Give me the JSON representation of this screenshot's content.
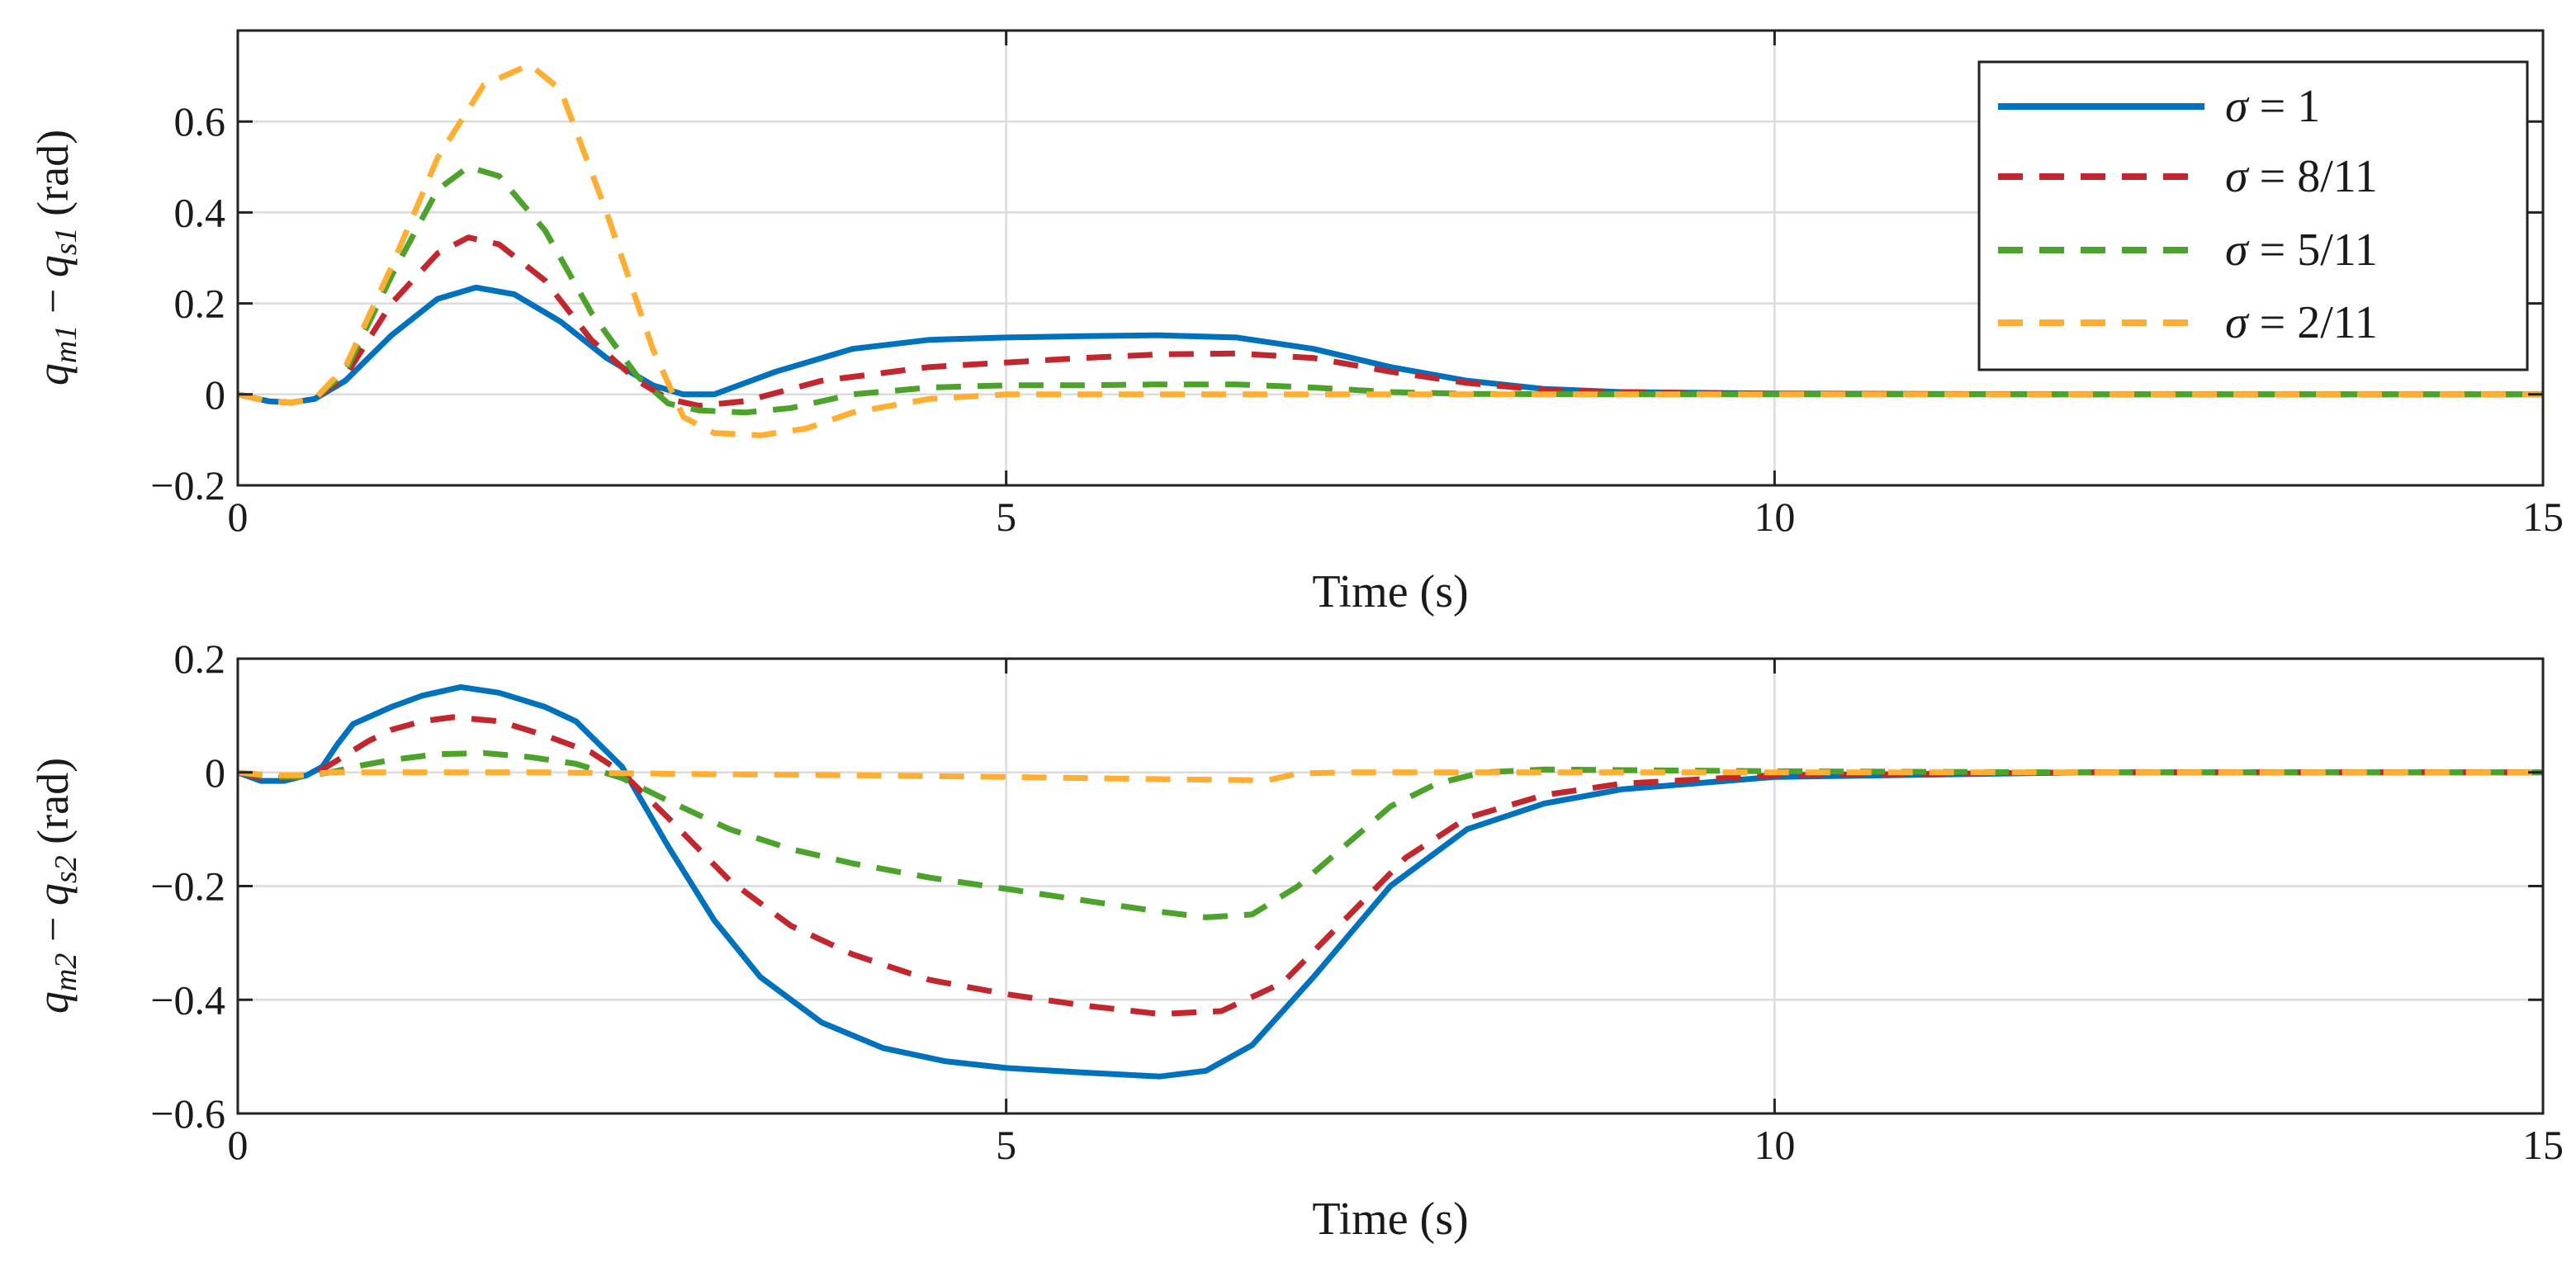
{
  "chart_data": [
    {
      "type": "line",
      "ylabel": {
        "base1": "q",
        "sub1": "m1",
        "minus": " − ",
        "base2": "q",
        "sub2": "s1",
        "unit": " (rad)"
      },
      "xlabel": "Time (s)",
      "xlim": [
        0,
        15
      ],
      "ylim": [
        -0.2,
        0.8
      ],
      "xticks": [
        0,
        5,
        10,
        15
      ],
      "xtick_labels": [
        "0",
        "5",
        "10",
        "15"
      ],
      "yticks": [
        -0.2,
        0,
        0.2,
        0.4,
        0.6
      ],
      "ytick_labels": [
        "−0.2",
        "0",
        "0.2",
        "0.4",
        "0.6"
      ],
      "grid": true,
      "legend": {
        "position": "top-right",
        "entries": [
          {
            "sym": "σ",
            "rest": " = 1"
          },
          {
            "sym": "σ",
            "rest": " = 8/11"
          },
          {
            "sym": "σ",
            "rest": " = 5/11"
          },
          {
            "sym": "σ",
            "rest": " = 2/11"
          }
        ]
      },
      "series": [
        {
          "name": "σ = 1",
          "color": "#0072BD",
          "style": "solid",
          "x": [
            0,
            0.2,
            0.35,
            0.5,
            0.7,
            1.0,
            1.3,
            1.55,
            1.8,
            2.1,
            2.4,
            2.7,
            2.9,
            3.1,
            3.5,
            4.0,
            4.5,
            5.0,
            5.5,
            6.0,
            6.5,
            7.0,
            7.5,
            8.0,
            8.5,
            9.0,
            10,
            12,
            15
          ],
          "y": [
            0,
            -0.015,
            -0.018,
            -0.01,
            0.03,
            0.13,
            0.21,
            0.235,
            0.22,
            0.16,
            0.08,
            0.02,
            0.0,
            0.0,
            0.05,
            0.1,
            0.12,
            0.125,
            0.128,
            0.13,
            0.125,
            0.1,
            0.06,
            0.03,
            0.012,
            0.005,
            0.002,
            0,
            0
          ]
        },
        {
          "name": "σ = 8/11",
          "color": "#C1272D",
          "style": "dashed",
          "x": [
            0,
            0.2,
            0.35,
            0.5,
            0.7,
            1.0,
            1.3,
            1.5,
            1.7,
            2.0,
            2.3,
            2.6,
            2.8,
            3.0,
            3.3,
            3.8,
            4.5,
            5.0,
            5.5,
            6.0,
            6.5,
            7.0,
            7.5,
            8.0,
            8.5,
            9.0,
            10,
            12,
            15
          ],
          "y": [
            0,
            -0.015,
            -0.018,
            -0.01,
            0.04,
            0.2,
            0.31,
            0.345,
            0.33,
            0.25,
            0.12,
            0.03,
            -0.01,
            -0.025,
            -0.015,
            0.03,
            0.06,
            0.07,
            0.08,
            0.088,
            0.09,
            0.08,
            0.05,
            0.025,
            0.01,
            0.005,
            0.001,
            0,
            0
          ]
        },
        {
          "name": "σ = 5/11",
          "color": "#4CA22A",
          "style": "dashed",
          "x": [
            0,
            0.2,
            0.35,
            0.5,
            0.7,
            1.0,
            1.3,
            1.5,
            1.7,
            2.0,
            2.3,
            2.6,
            2.8,
            3.0,
            3.3,
            3.6,
            4.0,
            4.5,
            5.0,
            5.5,
            6.0,
            6.5,
            7.0,
            7.5,
            8.0,
            9.0,
            10,
            15
          ],
          "y": [
            0,
            -0.015,
            -0.018,
            -0.01,
            0.05,
            0.26,
            0.45,
            0.5,
            0.48,
            0.36,
            0.18,
            0.04,
            -0.02,
            -0.035,
            -0.04,
            -0.03,
            0.0,
            0.015,
            0.02,
            0.02,
            0.022,
            0.022,
            0.015,
            0.005,
            0.001,
            0,
            0,
            0
          ]
        },
        {
          "name": "σ = 2/11",
          "color": "#FDAE33",
          "style": "dashed",
          "x": [
            0,
            0.2,
            0.35,
            0.5,
            0.7,
            1.0,
            1.3,
            1.6,
            1.9,
            2.1,
            2.4,
            2.7,
            2.9,
            3.1,
            3.4,
            3.7,
            4.0,
            4.5,
            5.0,
            6.0,
            7.0,
            8.0,
            10,
            15
          ],
          "y": [
            0,
            -0.015,
            -0.018,
            -0.01,
            0.06,
            0.28,
            0.52,
            0.68,
            0.725,
            0.67,
            0.4,
            0.1,
            -0.05,
            -0.085,
            -0.09,
            -0.075,
            -0.04,
            -0.01,
            0.0,
            0.0,
            0.0,
            0.0,
            0.0,
            0
          ]
        }
      ]
    },
    {
      "type": "line",
      "ylabel": {
        "base1": "q",
        "sub1": "m2",
        "minus": " − ",
        "base2": "q",
        "sub2": "s2",
        "unit": " (rad)"
      },
      "xlabel": "Time (s)",
      "xlim": [
        0,
        15
      ],
      "ylim": [
        -0.6,
        0.2
      ],
      "xticks": [
        0,
        5,
        10,
        15
      ],
      "xtick_labels": [
        "0",
        "5",
        "10",
        "15"
      ],
      "yticks": [
        -0.6,
        -0.4,
        -0.2,
        0,
        0.2
      ],
      "ytick_labels": [
        "−0.6",
        "−0.4",
        "−0.2",
        "0",
        "0.2"
      ],
      "grid": true,
      "series": [
        {
          "name": "σ = 1",
          "color": "#0072BD",
          "style": "solid",
          "x": [
            0,
            0.15,
            0.3,
            0.45,
            0.55,
            0.65,
            0.75,
            1.0,
            1.2,
            1.45,
            1.7,
            2.0,
            2.2,
            2.5,
            2.8,
            3.1,
            3.4,
            3.8,
            4.2,
            4.6,
            5.0,
            5.5,
            6.0,
            6.3,
            6.6,
            7.0,
            7.5,
            8.0,
            8.5,
            9.0,
            10,
            12,
            15
          ],
          "y": [
            0,
            -0.015,
            -0.015,
            -0.005,
            0.01,
            0.05,
            0.085,
            0.115,
            0.135,
            0.15,
            0.14,
            0.115,
            0.09,
            0.01,
            -0.13,
            -0.26,
            -0.36,
            -0.44,
            -0.485,
            -0.508,
            -0.52,
            -0.528,
            -0.535,
            -0.525,
            -0.48,
            -0.36,
            -0.2,
            -0.1,
            -0.055,
            -0.03,
            -0.008,
            0,
            0
          ]
        },
        {
          "name": "σ = 8/11",
          "color": "#C1272D",
          "style": "dashed",
          "x": [
            0,
            0.15,
            0.3,
            0.45,
            0.55,
            0.7,
            0.85,
            1.0,
            1.2,
            1.4,
            1.7,
            2.0,
            2.3,
            2.5,
            2.8,
            3.2,
            3.6,
            4.0,
            4.5,
            5.0,
            5.5,
            6.0,
            6.4,
            6.8,
            7.2,
            7.6,
            8.0,
            8.5,
            9.0,
            10,
            12,
            15
          ],
          "y": [
            0,
            -0.01,
            -0.01,
            -0.005,
            0.005,
            0.03,
            0.055,
            0.075,
            0.09,
            0.097,
            0.09,
            0.065,
            0.035,
            0.0,
            -0.08,
            -0.19,
            -0.27,
            -0.32,
            -0.365,
            -0.39,
            -0.41,
            -0.425,
            -0.42,
            -0.37,
            -0.26,
            -0.15,
            -0.08,
            -0.04,
            -0.02,
            -0.005,
            0,
            0
          ]
        },
        {
          "name": "σ = 5/11",
          "color": "#4CA22A",
          "style": "dashed",
          "x": [
            0,
            0.2,
            0.4,
            0.6,
            0.8,
            1.0,
            1.3,
            1.6,
            1.9,
            2.2,
            2.5,
            2.8,
            3.2,
            3.6,
            4.0,
            4.5,
            5.0,
            5.5,
            6.0,
            6.3,
            6.6,
            6.9,
            7.2,
            7.5,
            7.8,
            8.1,
            8.5,
            9.0,
            10,
            12,
            15
          ],
          "y": [
            0,
            -0.008,
            -0.008,
            0.0,
            0.012,
            0.022,
            0.032,
            0.034,
            0.027,
            0.015,
            -0.01,
            -0.05,
            -0.1,
            -0.135,
            -0.16,
            -0.185,
            -0.205,
            -0.225,
            -0.245,
            -0.255,
            -0.25,
            -0.2,
            -0.13,
            -0.06,
            -0.02,
            0.0,
            0.005,
            0.004,
            0.002,
            0,
            0
          ]
        },
        {
          "name": "σ = 2/11",
          "color": "#FDAE33",
          "style": "dashed",
          "x": [
            0,
            0.2,
            0.4,
            0.6,
            1.0,
            2.0,
            3.0,
            4.0,
            5.0,
            6.0,
            6.7,
            6.9,
            7.2,
            8.0,
            9.0,
            10,
            12,
            15
          ],
          "y": [
            0,
            -0.005,
            -0.005,
            0.0,
            0.0,
            0.0,
            -0.003,
            -0.005,
            -0.008,
            -0.012,
            -0.014,
            -0.002,
            0.0,
            0.0,
            0.0,
            0.0,
            0,
            0
          ]
        }
      ]
    }
  ]
}
